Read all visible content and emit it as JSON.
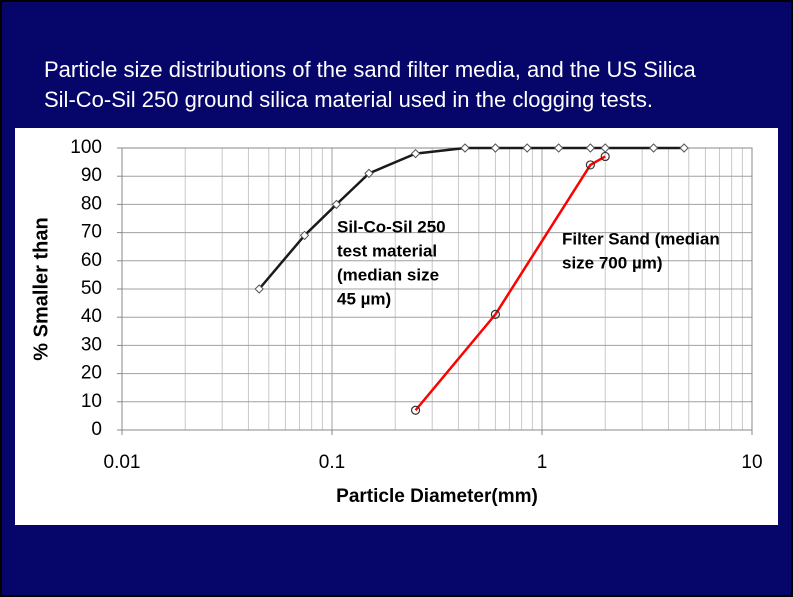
{
  "chart_data": {
    "type": "line",
    "title": [
      "Particle size distributions of the sand filter media, and the US Silica",
      "Sil-Co-Sil 250 ground silica material used in the clogging tests."
    ],
    "xlabel": "Particle Diameter(mm)",
    "ylabel": "% Smaller than",
    "xscale": "log",
    "xlim": [
      0.01,
      10
    ],
    "xticks": [
      0.01,
      0.1,
      1,
      10
    ],
    "ylim": [
      0,
      100
    ],
    "yticks": [
      0,
      10,
      20,
      30,
      40,
      50,
      60,
      70,
      80,
      90,
      100
    ],
    "grid": true,
    "series": [
      {
        "color": "#1a1a1a",
        "marker": "diamond",
        "x": [
          0.045,
          0.074,
          0.105,
          0.15,
          0.25,
          0.43,
          0.6,
          0.85,
          1.2,
          1.7,
          2.0,
          3.4,
          4.75
        ],
        "values": [
          50,
          69,
          80,
          91,
          98,
          100,
          100,
          100,
          100,
          100,
          100,
          100,
          100
        ]
      },
      {
        "color": "#ff0000",
        "marker": "circle",
        "x": [
          0.25,
          0.6,
          1.7,
          2.0
        ],
        "values": [
          7,
          41,
          94,
          97
        ]
      }
    ],
    "annotations": [
      [
        "Sil-Co-Sil 250",
        "test material",
        "(median size",
        "45 µm)"
      ],
      [
        "Filter Sand (median",
        "size 700 µm)"
      ]
    ]
  }
}
